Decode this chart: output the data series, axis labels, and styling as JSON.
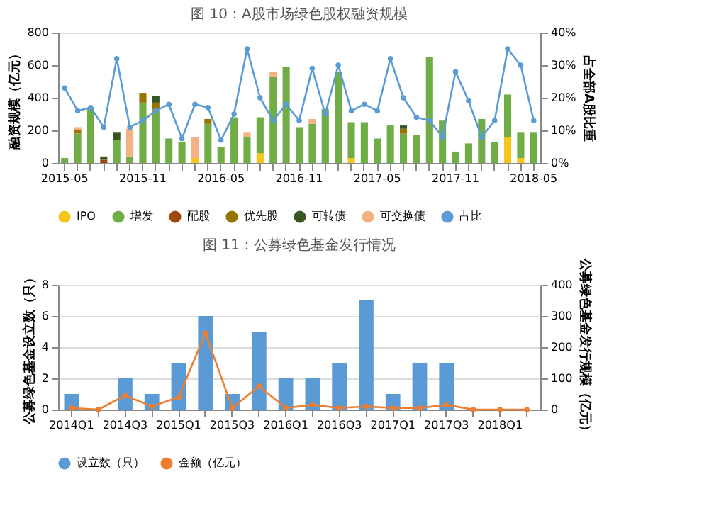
{
  "chart_data": [
    {
      "type": "bar",
      "title": "图 10：A股市场绿色股权融资规模",
      "ylabel": "融资规模（亿元）",
      "y2label": "占全部A股比重",
      "stacked": true,
      "legend": "bottom",
      "grid": false,
      "marker": "circle",
      "categories": [
        "2015-05",
        null,
        null,
        null,
        null,
        null,
        "2015-11",
        null,
        null,
        null,
        null,
        null,
        "2016-05",
        null,
        null,
        null,
        null,
        null,
        "2016-11",
        null,
        null,
        null,
        null,
        null,
        "2017-05",
        null,
        null,
        null,
        null,
        null,
        "2017-11",
        null,
        null,
        null,
        null,
        null,
        "2018-05"
      ],
      "ylim": [
        0,
        800
      ],
      "yticks": [
        0,
        200,
        400,
        600,
        800
      ],
      "y2lim": [
        0,
        40
      ],
      "y2ticks": [
        {
          "value": 0,
          "label": "0%"
        },
        {
          "value": 10,
          "label": "10%"
        },
        {
          "value": 20,
          "label": "20%"
        },
        {
          "value": 30,
          "label": "30%"
        },
        {
          "value": 40,
          "label": "40%"
        }
      ],
      "series": [
        {
          "name": "IPO",
          "color": "#f5c518",
          "values": [
            0,
            0,
            0,
            0,
            0,
            0,
            0,
            0,
            0,
            0,
            30,
            0,
            0,
            0,
            0,
            60,
            0,
            0,
            0,
            0,
            0,
            0,
            30,
            0,
            0,
            0,
            0,
            0,
            0,
            0,
            0,
            0,
            0,
            0,
            160,
            30,
            0
          ]
        },
        {
          "name": "增发",
          "color": "#70ad47",
          "values": [
            30,
            180,
            340,
            0,
            140,
            40,
            370,
            330,
            150,
            130,
            0,
            240,
            100,
            280,
            160,
            220,
            530,
            590,
            220,
            240,
            330,
            560,
            220,
            250,
            150,
            230,
            180,
            170,
            650,
            260,
            70,
            120,
            270,
            130,
            260,
            160,
            190
          ]
        },
        {
          "name": "配股",
          "color": "#9e480e",
          "values": [
            0,
            0,
            0,
            20,
            0,
            0,
            0,
            0,
            0,
            0,
            0,
            0,
            0,
            0,
            0,
            0,
            0,
            0,
            0,
            0,
            0,
            0,
            0,
            0,
            0,
            0,
            0,
            0,
            0,
            0,
            0,
            0,
            0,
            0,
            0,
            0,
            0
          ]
        },
        {
          "name": "优先股",
          "color": "#997300",
          "values": [
            0,
            20,
            0,
            0,
            0,
            0,
            60,
            40,
            0,
            0,
            0,
            30,
            0,
            0,
            0,
            0,
            0,
            0,
            0,
            0,
            0,
            0,
            0,
            0,
            0,
            0,
            30,
            0,
            0,
            0,
            0,
            0,
            0,
            0,
            0,
            0,
            0
          ]
        },
        {
          "name": "可转债",
          "color": "#375623",
          "values": [
            0,
            0,
            0,
            20,
            50,
            0,
            0,
            40,
            0,
            0,
            0,
            0,
            0,
            0,
            0,
            0,
            0,
            0,
            0,
            0,
            0,
            0,
            0,
            0,
            0,
            0,
            20,
            0,
            0,
            0,
            0,
            0,
            0,
            0,
            0,
            0,
            0
          ]
        },
        {
          "name": "可交换债",
          "color": "#f4b183",
          "values": [
            0,
            20,
            0,
            0,
            0,
            170,
            0,
            0,
            0,
            0,
            130,
            0,
            0,
            0,
            30,
            0,
            30,
            0,
            0,
            30,
            0,
            0,
            0,
            0,
            0,
            0,
            0,
            0,
            0,
            0,
            0,
            0,
            0,
            0,
            0,
            0,
            0
          ]
        },
        {
          "name": "占比",
          "type": "line",
          "axis": "y2",
          "color": "#5b9bd5",
          "values": [
            23,
            16,
            17,
            11,
            32,
            11,
            13,
            16,
            18,
            7.5,
            18,
            17,
            7,
            15,
            35,
            20,
            13,
            18,
            13,
            29,
            15,
            30,
            16,
            18,
            16,
            32,
            20,
            14,
            13,
            8,
            28,
            19,
            8,
            13,
            35,
            30,
            13
          ]
        }
      ]
    },
    {
      "type": "bar",
      "title": "图 11：公募绿色基金发行情况",
      "ylabel": "公募绿色基金设立数（只）",
      "y2label": "公募绿色基金发行规模（亿元）",
      "legend": "bottom",
      "grid": "y",
      "marker": "circle",
      "categories": [
        "2014Q1",
        null,
        "2014Q3",
        null,
        "2015Q1",
        null,
        "2015Q3",
        null,
        "2016Q1",
        null,
        "2016Q3",
        null,
        "2017Q1",
        null,
        "2017Q3",
        null,
        "2018Q1",
        null
      ],
      "ylim": [
        0,
        8
      ],
      "yticks": [
        0,
        2,
        4,
        6,
        8
      ],
      "y2lim": [
        0,
        400
      ],
      "y2ticks": [
        0,
        100,
        200,
        300,
        400
      ],
      "series": [
        {
          "name": "设立数（只）",
          "color": "#5b9bd5",
          "values": [
            1,
            0,
            2,
            1,
            3,
            6,
            1,
            5,
            2,
            2,
            3,
            7,
            1,
            3,
            3,
            0,
            0,
            0
          ]
        },
        {
          "name": "金额（亿元）",
          "type": "line",
          "axis": "y2",
          "color": "#ed7d31",
          "values": [
            5,
            0,
            45,
            10,
            40,
            245,
            5,
            75,
            5,
            15,
            5,
            10,
            5,
            5,
            15,
            0,
            0,
            0
          ]
        }
      ]
    }
  ]
}
